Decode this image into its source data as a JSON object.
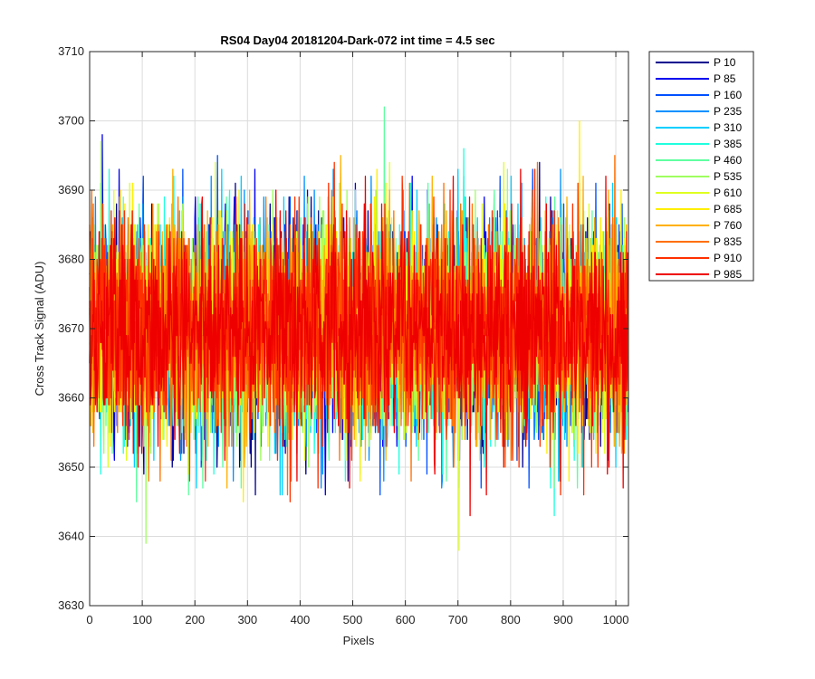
{
  "chart_data": {
    "type": "line",
    "title": "RS04 Day04 20181204-Dark-072 int time = 4.5 sec",
    "xlabel": "Pixels",
    "ylabel": "Cross Track Signal (ADU)",
    "xlim": [
      0,
      1024
    ],
    "ylim": [
      3630,
      3710
    ],
    "xticks": [
      0,
      100,
      200,
      300,
      400,
      500,
      600,
      700,
      800,
      900,
      1000
    ],
    "yticks": [
      3630,
      3640,
      3650,
      3660,
      3670,
      3680,
      3690,
      3700,
      3710
    ],
    "grid": true,
    "legend_position": "outside-top-right",
    "series_summary": {
      "mean": 3670,
      "typical_min": 3646,
      "typical_max": 3694
    },
    "series": [
      {
        "name": "P 10",
        "color": "#00008f",
        "extreme_low": 3648,
        "extreme_high": 3694
      },
      {
        "name": "P 85",
        "color": "#0000ef",
        "extreme_low": 3646,
        "extreme_high": 3698
      },
      {
        "name": "P 160",
        "color": "#0050ff",
        "extreme_low": 3647,
        "extreme_high": 3695
      },
      {
        "name": "P 235",
        "color": "#0090ff",
        "extreme_low": 3648,
        "extreme_high": 3692
      },
      {
        "name": "P 310",
        "color": "#00cfff",
        "extreme_low": 3646,
        "extreme_high": 3693
      },
      {
        "name": "P 385",
        "color": "#20ffdf",
        "extreme_low": 3643,
        "extreme_high": 3696
      },
      {
        "name": "P 460",
        "color": "#60ffa0",
        "extreme_low": 3645,
        "extreme_high": 3702
      },
      {
        "name": "P 535",
        "color": "#9fff60",
        "extreme_low": 3639,
        "extreme_high": 3697
      },
      {
        "name": "P 610",
        "color": "#dfff20",
        "extreme_low": 3638,
        "extreme_high": 3694
      },
      {
        "name": "P 685",
        "color": "#ffef00",
        "extreme_low": 3645,
        "extreme_high": 3700
      },
      {
        "name": "P 760",
        "color": "#ffb000",
        "extreme_low": 3647,
        "extreme_high": 3695
      },
      {
        "name": "P 835",
        "color": "#ff7000",
        "extreme_low": 3648,
        "extreme_high": 3695
      },
      {
        "name": "P 910",
        "color": "#ff3000",
        "extreme_low": 3645,
        "extreme_high": 3693
      },
      {
        "name": "P 985",
        "color": "#ef0000",
        "extreme_low": 3643,
        "extreme_high": 3693
      }
    ]
  }
}
